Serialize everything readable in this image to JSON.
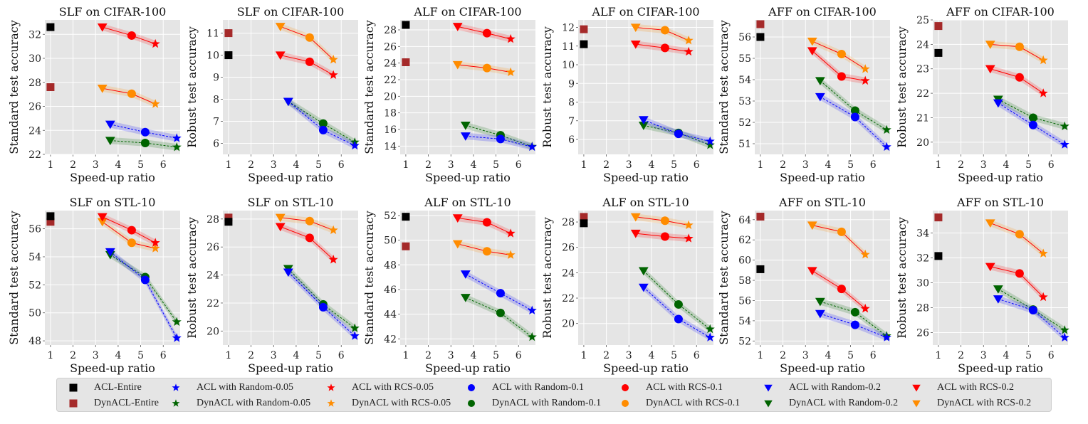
{
  "chart_data": [
    {
      "type": "line",
      "title": "SLF on CIFAR-100",
      "xlabel": "Speed-up ratio",
      "ylabel": "Standard test accuracy",
      "xlim": [
        0.75,
        6.75
      ],
      "ylim": [
        22,
        33.2
      ],
      "xticks": [
        1,
        2,
        3,
        4,
        5,
        6
      ],
      "yticks": [
        22,
        24,
        26,
        28,
        30,
        32
      ],
      "grid": true,
      "baselines": {
        "ACL-Entire": 32.6,
        "DynACL-Entire": 27.6
      },
      "series": {
        "ACL with RCS": [
          32.6,
          31.9,
          31.2
        ],
        "DynACL with RCS": [
          27.5,
          27.05,
          26.2
        ],
        "ACL with Random": [
          24.5,
          23.85,
          23.35
        ],
        "DynACL with Random": [
          23.15,
          22.95,
          22.6
        ]
      }
    },
    {
      "type": "line",
      "title": "SLF on CIFAR-100",
      "xlabel": "Speed-up ratio",
      "ylabel": "Robust test accuracy",
      "xlim": [
        0.75,
        6.75
      ],
      "ylim": [
        5.5,
        11.6
      ],
      "xticks": [
        1,
        2,
        3,
        4,
        5,
        6
      ],
      "yticks": [
        6,
        7,
        8,
        9,
        10,
        11
      ],
      "grid": true,
      "baselines": {
        "ACL-Entire": 10.0,
        "DynACL-Entire": 11.0
      },
      "series": {
        "ACL with RCS": [
          10.0,
          9.7,
          9.1
        ],
        "DynACL with RCS": [
          11.3,
          10.8,
          9.8
        ],
        "ACL with Random": [
          7.9,
          6.6,
          5.9
        ],
        "DynACL with Random": [
          7.9,
          6.9,
          6.05
        ]
      }
    },
    {
      "type": "line",
      "title": "ALF on CIFAR-100",
      "xlabel": "Speed-up ratio",
      "ylabel": "Standard test accuracy",
      "xlim": [
        0.75,
        6.75
      ],
      "ylim": [
        13,
        29.2
      ],
      "xticks": [
        1,
        2,
        3,
        4,
        5,
        6
      ],
      "yticks": [
        14,
        16,
        18,
        20,
        22,
        24,
        26,
        28
      ],
      "grid": true,
      "baselines": {
        "ACL-Entire": 28.6,
        "DynACL-Entire": 24.1
      },
      "series": {
        "ACL with RCS": [
          28.4,
          27.6,
          26.9
        ],
        "DynACL with RCS": [
          23.8,
          23.4,
          22.9
        ],
        "ACL with Random": [
          15.2,
          14.85,
          13.9
        ],
        "DynACL with Random": [
          16.5,
          15.3,
          13.95
        ]
      }
    },
    {
      "type": "line",
      "title": "ALF on CIFAR-100",
      "xlabel": "Speed-up ratio",
      "ylabel": "Robust test accuracy",
      "xlim": [
        0.75,
        6.75
      ],
      "ylim": [
        5.2,
        12.4
      ],
      "xticks": [
        1,
        2,
        3,
        4,
        5,
        6
      ],
      "yticks": [
        6,
        7,
        8,
        9,
        10,
        11,
        12
      ],
      "grid": true,
      "baselines": {
        "ACL-Entire": 11.1,
        "DynACL-Entire": 11.9
      },
      "series": {
        "ACL with RCS": [
          11.1,
          10.9,
          10.7
        ],
        "DynACL with RCS": [
          12.0,
          11.85,
          11.3
        ],
        "ACL with Random": [
          7.05,
          6.3,
          5.9
        ],
        "DynACL with Random": [
          6.75,
          6.35,
          5.7
        ]
      }
    },
    {
      "type": "line",
      "title": "AFF on CIFAR-100",
      "xlabel": "Speed-up ratio",
      "ylabel": "Standard test accuracy",
      "xlim": [
        0.75,
        6.75
      ],
      "ylim": [
        50.5,
        56.8
      ],
      "xticks": [
        1,
        2,
        3,
        4,
        5,
        6
      ],
      "yticks": [
        51,
        52,
        53,
        54,
        55,
        56
      ],
      "grid": true,
      "baselines": {
        "ACL-Entire": 56.0,
        "DynACL-Entire": 56.6
      },
      "series": {
        "ACL with RCS": [
          55.35,
          54.15,
          53.95
        ],
        "DynACL with RCS": [
          55.8,
          55.2,
          54.5
        ],
        "ACL with Random": [
          53.2,
          52.25,
          50.85
        ],
        "DynACL with Random": [
          53.95,
          52.55,
          51.65
        ]
      }
    },
    {
      "type": "line",
      "title": "AFF on CIFAR-100",
      "xlabel": "Speed-up ratio",
      "ylabel": "Robust test accuracy",
      "xlim": [
        0.75,
        6.75
      ],
      "ylim": [
        19.5,
        25.0
      ],
      "xticks": [
        1,
        2,
        3,
        4,
        5,
        6
      ],
      "yticks": [
        20,
        21,
        22,
        23,
        24,
        25
      ],
      "grid": true,
      "baselines": {
        "ACL-Entire": 23.65,
        "DynACL-Entire": 24.75
      },
      "series": {
        "ACL with RCS": [
          23.0,
          22.65,
          22.0
        ],
        "DynACL with RCS": [
          24.0,
          23.9,
          23.35
        ],
        "ACL with Random": [
          21.6,
          20.7,
          19.9
        ],
        "DynACL with Random": [
          21.75,
          21.0,
          20.65
        ]
      }
    },
    {
      "type": "line",
      "title": "SLF on STL-10",
      "xlabel": "Speed-up ratio",
      "ylabel": "Standard test accuracy",
      "xlim": [
        0.75,
        6.75
      ],
      "ylim": [
        47.7,
        57.3
      ],
      "xticks": [
        1,
        2,
        3,
        4,
        5,
        6
      ],
      "yticks": [
        48,
        50,
        52,
        54,
        56
      ],
      "grid": true,
      "baselines": {
        "ACL-Entire": 56.9,
        "DynACL-Entire": 56.5
      },
      "series": {
        "ACL with RCS": [
          56.85,
          55.9,
          55.0
        ],
        "DynACL with RCS": [
          56.5,
          55.0,
          54.6
        ],
        "ACL with Random": [
          54.35,
          52.35,
          48.2
        ],
        "DynACL with Random": [
          54.15,
          52.55,
          49.35
        ]
      }
    },
    {
      "type": "line",
      "title": "SLF on STL-10",
      "xlabel": "Speed-up ratio",
      "ylabel": "Robust test accuracy",
      "xlim": [
        0.75,
        6.75
      ],
      "ylim": [
        19.0,
        28.6
      ],
      "xticks": [
        1,
        2,
        3,
        4,
        5,
        6
      ],
      "yticks": [
        20,
        22,
        24,
        26,
        28
      ],
      "grid": true,
      "baselines": {
        "ACL-Entire": 27.8,
        "DynACL-Entire": 28.1
      },
      "series": {
        "ACL with RCS": [
          27.45,
          26.65,
          25.1
        ],
        "DynACL with RCS": [
          28.1,
          27.85,
          27.2
        ],
        "ACL with Random": [
          24.2,
          21.7,
          19.65
        ],
        "DynACL with Random": [
          24.45,
          21.9,
          20.2
        ]
      }
    },
    {
      "type": "line",
      "title": "ALF on STL-10",
      "xlabel": "Speed-up ratio",
      "ylabel": "Standard test accuracy",
      "xlim": [
        0.75,
        6.75
      ],
      "ylim": [
        41.5,
        52.4
      ],
      "xticks": [
        1,
        2,
        3,
        4,
        5,
        6
      ],
      "yticks": [
        42,
        44,
        46,
        48,
        50,
        52
      ],
      "grid": true,
      "baselines": {
        "ACL-Entire": 51.9,
        "DynACL-Entire": 49.5
      },
      "series": {
        "ACL with RCS": [
          51.8,
          51.45,
          50.55
        ],
        "DynACL with RCS": [
          49.7,
          49.1,
          48.8
        ],
        "ACL with Random": [
          47.25,
          45.7,
          44.3
        ],
        "DynACL with Random": [
          45.35,
          44.1,
          42.15
        ]
      }
    },
    {
      "type": "line",
      "title": "ALF on STL-10",
      "xlabel": "Speed-up ratio",
      "ylabel": "Robust test accuracy",
      "xlim": [
        0.75,
        6.75
      ],
      "ylim": [
        18.3,
        28.9
      ],
      "xticks": [
        1,
        2,
        3,
        4,
        5,
        6
      ],
      "yticks": [
        20,
        22,
        24,
        26,
        28
      ],
      "grid": true,
      "baselines": {
        "ACL-Entire": 27.9,
        "DynACL-Entire": 28.4
      },
      "series": {
        "ACL with RCS": [
          27.1,
          26.85,
          26.7
        ],
        "DynACL with RCS": [
          28.4,
          28.1,
          27.75
        ],
        "ACL with Random": [
          22.85,
          20.35,
          18.9
        ],
        "DynACL with Random": [
          24.15,
          21.5,
          19.55
        ]
      }
    },
    {
      "type": "line",
      "title": "AFF on STL-10",
      "xlabel": "Speed-up ratio",
      "ylabel": "Standard test accuracy",
      "xlim": [
        0.75,
        6.75
      ],
      "ylim": [
        51.6,
        64.9
      ],
      "xticks": [
        1,
        2,
        3,
        4,
        5,
        6
      ],
      "yticks": [
        52,
        54,
        56,
        58,
        60,
        62,
        64
      ],
      "grid": true,
      "baselines": {
        "ACL-Entire": 59.1,
        "DynACL-Entire": 64.3
      },
      "series": {
        "ACL with RCS": [
          58.95,
          57.15,
          55.2
        ],
        "DynACL with RCS": [
          63.45,
          62.8,
          60.55
        ],
        "ACL with Random": [
          54.7,
          53.6,
          52.35
        ],
        "DynACL with Random": [
          55.9,
          54.85,
          52.5
        ]
      }
    },
    {
      "type": "line",
      "title": "AFF on STL-10",
      "xlabel": "Speed-up ratio",
      "ylabel": "Robust test accuracy",
      "xlim": [
        0.75,
        6.75
      ],
      "ylim": [
        25.0,
        35.8
      ],
      "xticks": [
        1,
        2,
        3,
        4,
        5,
        6
      ],
      "yticks": [
        26,
        28,
        30,
        32,
        34
      ],
      "grid": true,
      "baselines": {
        "ACL-Entire": 32.15,
        "DynACL-Entire": 35.25
      },
      "series": {
        "ACL with RCS": [
          31.3,
          30.75,
          28.85
        ],
        "DynACL with RCS": [
          34.8,
          33.9,
          32.35
        ],
        "ACL with Random": [
          28.7,
          27.8,
          25.6
        ],
        "DynACL with Random": [
          29.5,
          27.85,
          26.2
        ]
      }
    }
  ],
  "common": {
    "speedup_x": {
      "0.2": 3.3,
      "0.1": 4.6,
      "0.05": 5.65
    },
    "random_speedup_x": {
      "0.2": 3.65,
      "0.1": 5.2,
      "0.05": 6.6
    }
  },
  "legend": {
    "placement": "bottom",
    "items": [
      {
        "label": "ACL-Entire",
        "marker": "square",
        "color": "#000000"
      },
      {
        "label": "DynACL-Entire",
        "marker": "square",
        "color": "#a52a2a"
      },
      {
        "label": "ACL with Random-0.05",
        "marker": "star",
        "color": "#0000ff"
      },
      {
        "label": "DynACL with Random-0.05",
        "marker": "star",
        "color": "#006400"
      },
      {
        "label": "ACL with RCS-0.05",
        "marker": "star",
        "color": "#ff0000"
      },
      {
        "label": "DynACL with RCS-0.05",
        "marker": "star",
        "color": "#ff8c00"
      },
      {
        "label": "ACL with Random-0.1",
        "marker": "circle",
        "color": "#0000ff"
      },
      {
        "label": "DynACL with Random-0.1",
        "marker": "circle",
        "color": "#006400"
      },
      {
        "label": "ACL with RCS-0.1",
        "marker": "circle",
        "color": "#ff0000"
      },
      {
        "label": "DynACL with RCS-0.1",
        "marker": "circle",
        "color": "#ff8c00"
      },
      {
        "label": "ACL with Random-0.2",
        "marker": "triangle-down",
        "color": "#0000ff"
      },
      {
        "label": "DynACL with Random-0.2",
        "marker": "triangle-down",
        "color": "#006400"
      },
      {
        "label": "ACL with RCS-0.2",
        "marker": "triangle-down",
        "color": "#ff0000"
      },
      {
        "label": "DynACL with RCS-0.2",
        "marker": "triangle-down",
        "color": "#ff8c00"
      }
    ]
  },
  "colors": {
    "ACL with RCS": "#ff0000",
    "DynACL with RCS": "#ff8c00",
    "ACL with Random": "#0000ff",
    "DynACL with Random": "#006400",
    "ACL-Entire": "#000000",
    "DynACL-Entire": "#a52a2a",
    "plot_bg": "#e5e5e5",
    "grid": "#ffffff"
  }
}
